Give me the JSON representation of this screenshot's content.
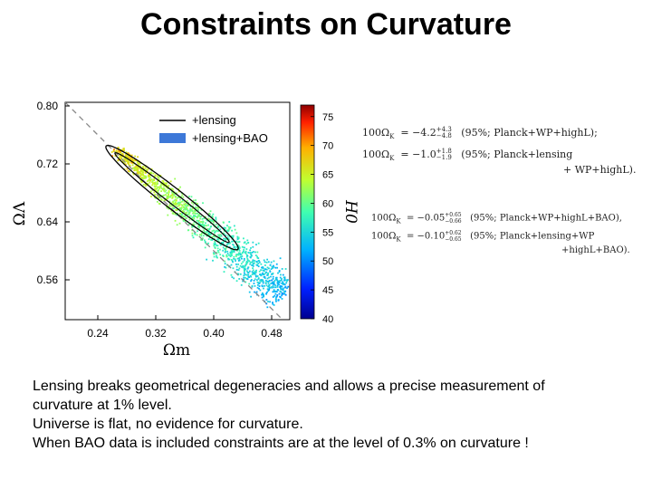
{
  "slide": {
    "title": "Constraints on Curvature",
    "bullets": [
      "Lensing breaks geometrical degeneracies and allows a precise measurement of",
      "curvature at 1% level.",
      "Universe is flat, no evidence for curvature.",
      "When BAO data is included constraints are at the level of 0.3% on curvature !"
    ]
  },
  "chart_data": {
    "type": "scatter",
    "xlabel": "Ωm",
    "ylabel": "ΩΛ",
    "xlim": [
      0.195,
      0.505
    ],
    "ylim": [
      0.505,
      0.805
    ],
    "x_ticks": [
      "0.24",
      "0.32",
      "0.40",
      "0.48"
    ],
    "y_ticks": [
      "0.80",
      "0.72",
      "0.64",
      "0.56"
    ],
    "legend": {
      "position": "top-right",
      "entries": [
        {
          "label": "+lensing",
          "kind": "line",
          "color": "#000000"
        },
        {
          "label": "+lensing+BAO",
          "kind": "patch",
          "color": "#3d78d8"
        }
      ]
    },
    "flat_line": {
      "from": [
        0.195,
        0.805
      ],
      "to": [
        0.505,
        0.495
      ],
      "style": "dashed"
    },
    "contour_lensing": {
      "center": [
        0.34,
        0.66
      ],
      "major_axis_points": [
        [
          0.255,
          0.742
        ],
        [
          0.43,
          0.605
        ]
      ],
      "widths": [
        0.012,
        0.02
      ]
    },
    "samples_description_range": {
      "x": [
        0.26,
        0.5
      ],
      "y": [
        0.53,
        0.74
      ]
    },
    "colorbar": {
      "label": "H0",
      "range": [
        40,
        77
      ],
      "ticks": [
        "75",
        "70",
        "65",
        "60",
        "55",
        "50",
        "45",
        "40"
      ]
    },
    "annotations": [
      {
        "lhs": "100Ω",
        "sub": "K",
        "value": "−4.2",
        "up": "+4.3",
        "down": "−4.8",
        "note": "(95%; Planck+WP+highL);"
      },
      {
        "lhs": "100Ω",
        "sub": "K",
        "value": "−1.0",
        "up": "+1.8",
        "down": "−1.9",
        "note": "(95%; Planck+lensing",
        "note2": "+ WP+highL)."
      },
      {
        "lhs": "100Ω",
        "sub": "K",
        "value": "−0.05",
        "up": "+0.65",
        "down": "−0.66",
        "note": "(95%; Planck+WP+highL+BAO),"
      },
      {
        "lhs": "100Ω",
        "sub": "K",
        "value": "−0.10",
        "up": "+0.62",
        "down": "−0.65",
        "note": "(95%; Planck+lensing+WP",
        "note2": "+highL+BAO)."
      }
    ]
  }
}
